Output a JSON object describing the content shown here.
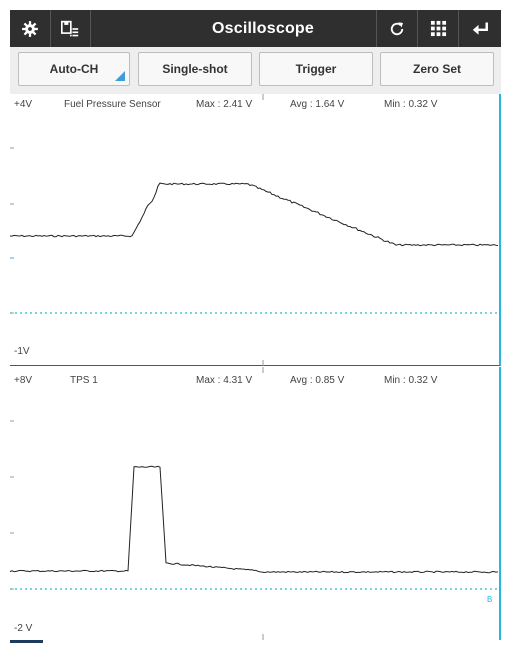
{
  "app": {
    "title": "Oscilloscope",
    "icons": {
      "settings": "gear-icon",
      "save": "save-list-icon",
      "refresh": "refresh-icon",
      "grid": "grid-icon",
      "back": "back-arrow-icon"
    }
  },
  "toolbar": {
    "auto_ch": "Auto-CH",
    "single_shot": "Single-shot",
    "trigger": "Trigger",
    "zero_set": "Zero Set"
  },
  "channels": [
    {
      "top_scale": "+4V",
      "bottom_scale": "-1V",
      "name": "Fuel Pressure Sensor",
      "max": "Max : 2.41 V",
      "avg": "Avg : 1.64 V",
      "min": "Min : 0.32 V"
    },
    {
      "top_scale": "+8V",
      "bottom_scale": "-2 V",
      "name": "TPS 1",
      "max": "Max : 4.31 V",
      "avg": "Avg : 0.85 V",
      "min": "Min : 0.32 V",
      "marker": "B"
    }
  ],
  "colors": {
    "titlebar": "#2f2f2f",
    "accent": "#29b6d8",
    "trace": "#222222",
    "zero_line": "#29b6d8"
  }
}
